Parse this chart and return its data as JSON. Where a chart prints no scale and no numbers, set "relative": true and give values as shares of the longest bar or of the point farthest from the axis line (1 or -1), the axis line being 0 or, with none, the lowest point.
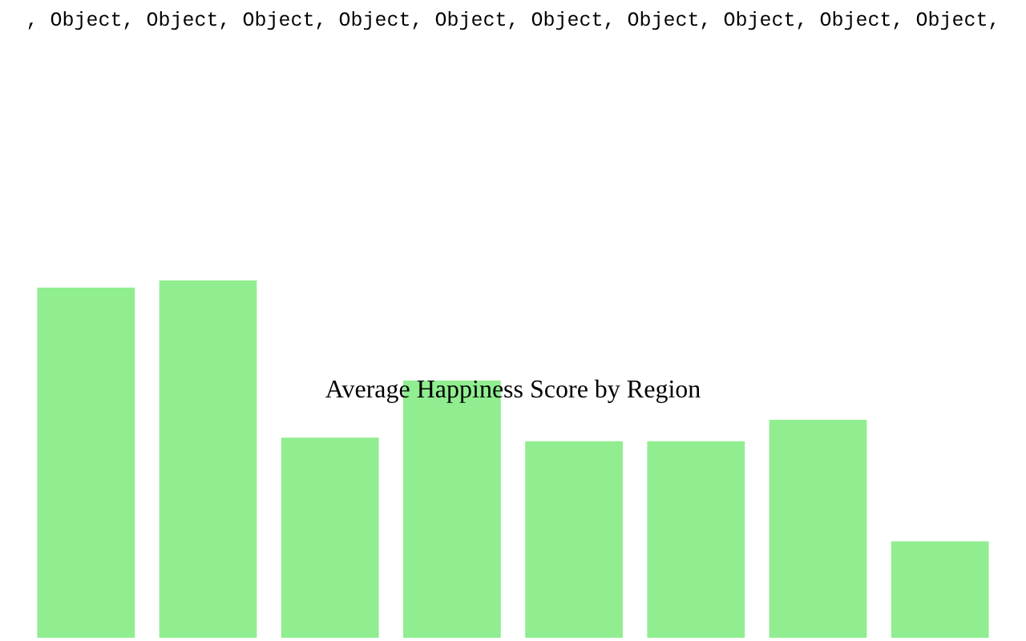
{
  "chart_data": {
    "type": "bar",
    "title": "Average Happiness Score by Region",
    "relative": true,
    "annotations": [
      ", Object, Object, Object, Object, Object, Object, Object, Object, Object, Object,"
    ],
    "categories": [
      null,
      null,
      null,
      null,
      null,
      null,
      null,
      null
    ],
    "values": [
      0.98,
      1,
      0.56,
      0.72,
      0.55,
      0.55,
      0.61,
      0.27
    ],
    "color": "#90ee90"
  }
}
